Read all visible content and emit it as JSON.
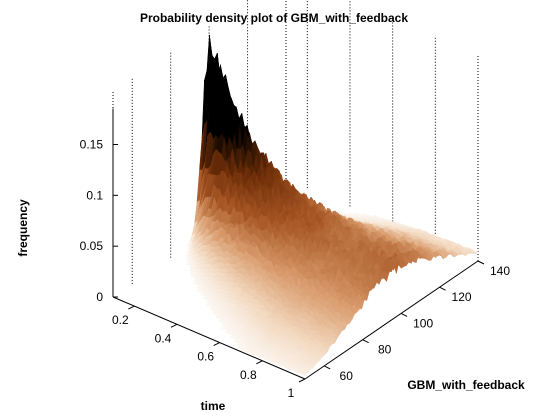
{
  "chart_data": {
    "type": "surface",
    "title": "Probability density plot of GBM_with_feedback",
    "xlabel": "time",
    "ylabel": "GBM_with_feedback",
    "zlabel": "frequency",
    "x_ticks": [
      "0.2",
      "0.4",
      "0.6",
      "0.8",
      "1"
    ],
    "y_ticks": [
      "60",
      "80",
      "100",
      "120",
      "140"
    ],
    "z_ticks": [
      "0",
      "0.05",
      "0.1",
      "0.15"
    ],
    "xlim": [
      0.1,
      1.0
    ],
    "ylim": [
      50,
      140
    ],
    "zlim": [
      0,
      0.18
    ],
    "grid": true,
    "colormap": [
      "#ffffff",
      "#f2d7bd",
      "#d99b6c",
      "#a65523",
      "#6e2e08",
      "#000000"
    ],
    "surface": {
      "peak": {
        "time": 0.1,
        "GBM_with_feedback": 100,
        "frequency": 0.18
      },
      "ridges": [
        {
          "center_GBM_with_feedback": 100,
          "frequency_at_t1": 0.03
        },
        {
          "center_GBM_with_feedback": 80,
          "frequency_at_t1": 0.02
        },
        {
          "center_GBM_with_feedback": 120,
          "frequency_at_t1": 0.015
        }
      ]
    }
  }
}
